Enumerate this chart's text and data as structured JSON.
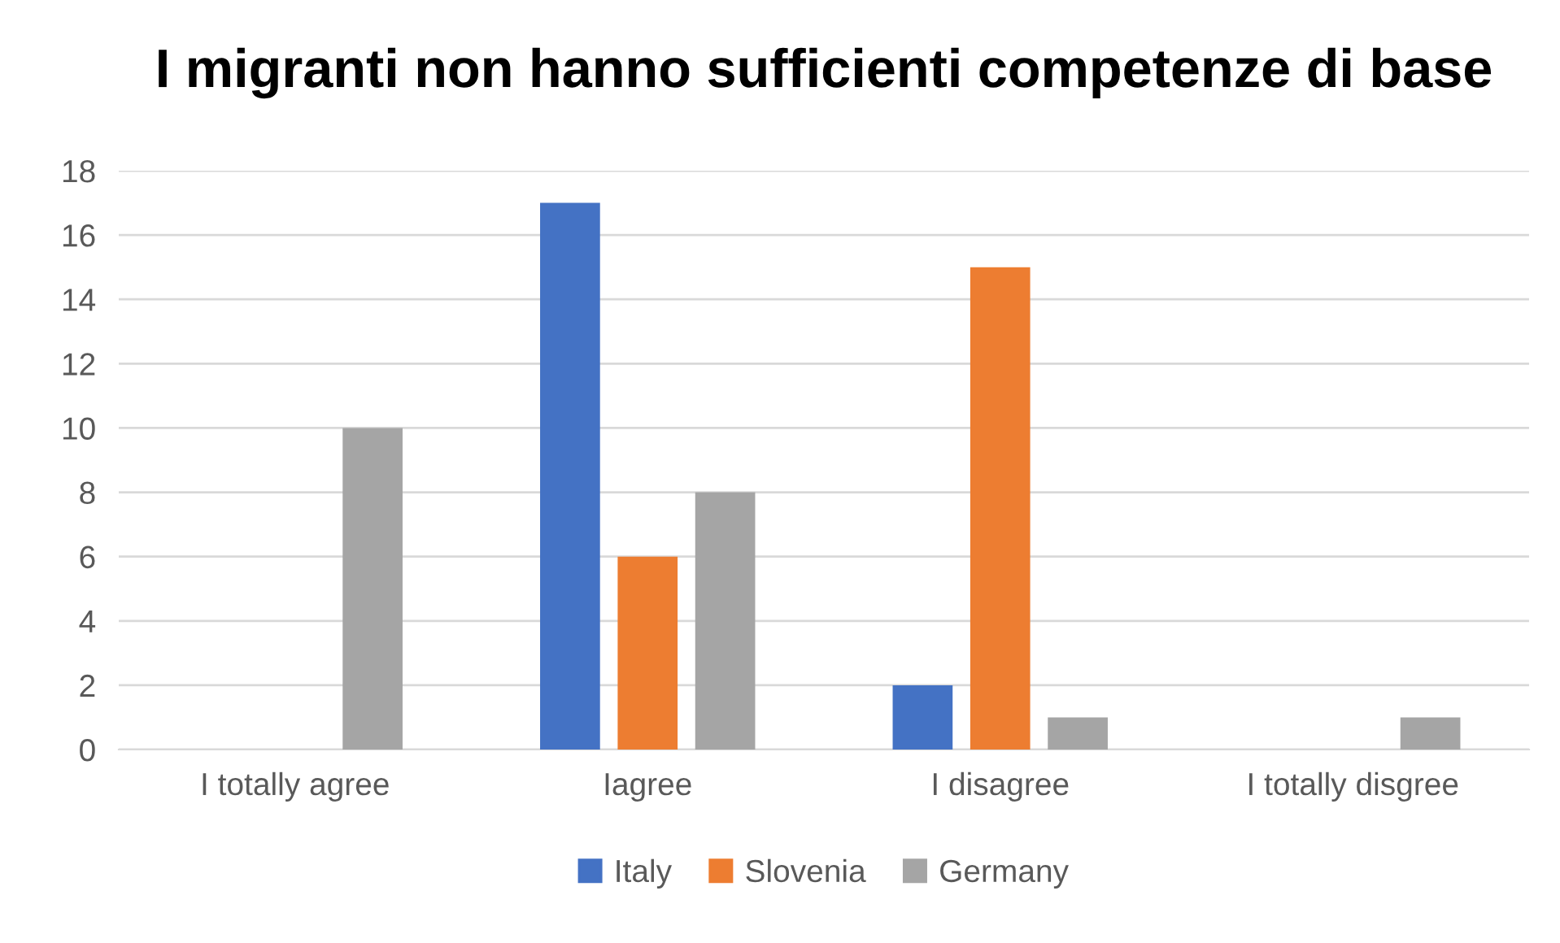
{
  "chart_data": {
    "type": "bar",
    "title": "I migranti non hanno sufficienti competenze di base",
    "categories": [
      "I totally agree",
      "Iagree",
      "I disagree",
      "I totally disgree"
    ],
    "series": [
      {
        "name": "Italy",
        "color": "#4472c4",
        "values": [
          0,
          17,
          2,
          0
        ]
      },
      {
        "name": "Slovenia",
        "color": "#ed7d31",
        "values": [
          0,
          6,
          15,
          0
        ]
      },
      {
        "name": "Germany",
        "color": "#a5a5a5",
        "values": [
          10,
          8,
          1,
          1
        ]
      }
    ],
    "ylim": [
      0,
      18
    ],
    "yticks": [
      0,
      2,
      4,
      6,
      8,
      10,
      12,
      14,
      16,
      18
    ],
    "grid": "y",
    "legend": "bottom"
  }
}
